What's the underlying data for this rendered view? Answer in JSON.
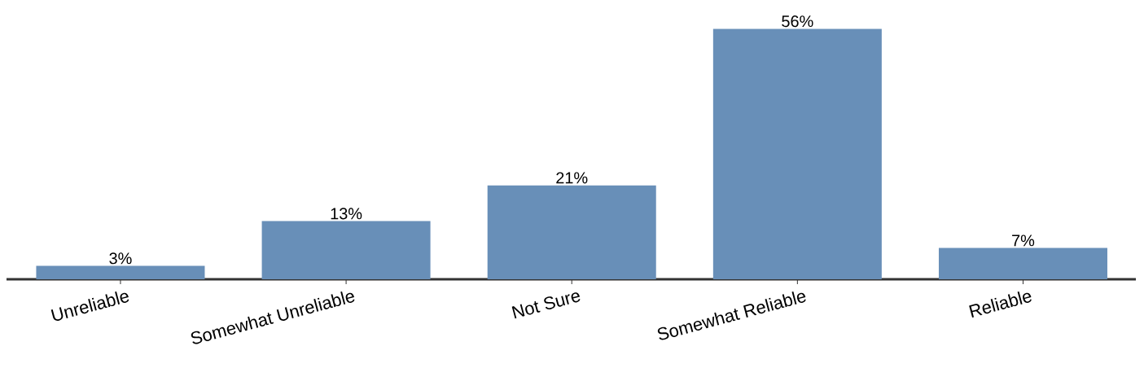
{
  "chart_data": {
    "type": "bar",
    "categories": [
      "Unreliable",
      "Somewhat Unreliable",
      "Not Sure",
      "Somewhat Reliable",
      "Reliable"
    ],
    "values": [
      3,
      13,
      21,
      56,
      7
    ],
    "value_labels": [
      "3%",
      "13%",
      "21%",
      "56%",
      "7%"
    ],
    "color": "#688fb8"
  }
}
